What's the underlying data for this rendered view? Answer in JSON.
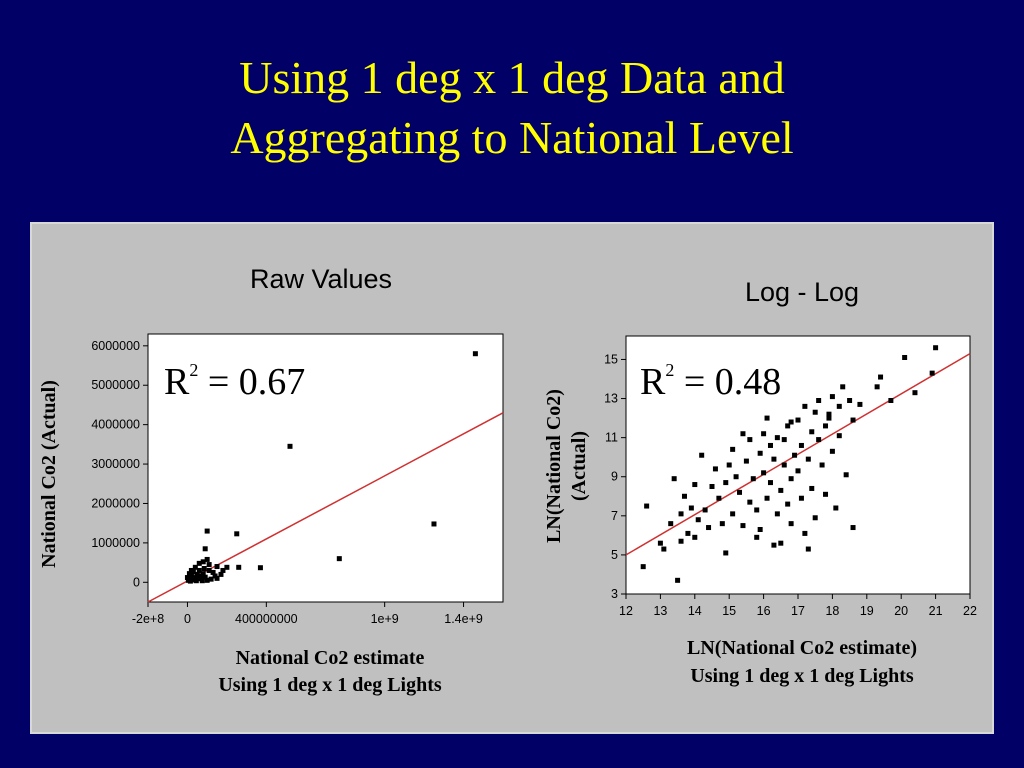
{
  "slide": {
    "title_line1": "Using 1 deg x 1 deg Data and",
    "title_line2": "Aggregating to National Level"
  },
  "colors": {
    "background": "#000066",
    "title": "#ffff00",
    "panel": "#c0c0c0",
    "fit_line": "#d03030",
    "points": "#000000"
  },
  "chart_data": [
    {
      "type": "scatter",
      "title": "Raw Values",
      "ylabel": "National Co2 (Actual)",
      "xlabel_line1": "National Co2 estimate",
      "xlabel_line2": "Using 1 deg x 1 deg Lights",
      "annotation": {
        "base": "R",
        "sup": "2",
        "value": " = 0.67"
      },
      "xlim": [
        -200000000,
        1600000000
      ],
      "ylim": [
        -500000,
        6300000
      ],
      "x_ticks": [
        {
          "value": -200000000,
          "label": "-2e+8"
        },
        {
          "value": 0,
          "label": "0"
        },
        {
          "value": 400000000,
          "label": "400000000"
        },
        {
          "value": 1000000000,
          "label": "1e+9"
        },
        {
          "value": 1400000000,
          "label": "1.4e+9"
        }
      ],
      "y_ticks": [
        {
          "value": 0,
          "label": "0"
        },
        {
          "value": 1000000,
          "label": "1000000"
        },
        {
          "value": 2000000,
          "label": "2000000"
        },
        {
          "value": 3000000,
          "label": "3000000"
        },
        {
          "value": 4000000,
          "label": "4000000"
        },
        {
          "value": 5000000,
          "label": "5000000"
        },
        {
          "value": 6000000,
          "label": "6000000"
        }
      ],
      "fit_line": [
        [
          -200000000,
          -500000
        ],
        [
          1600000000,
          4300000
        ]
      ],
      "points": [
        [
          1460000000,
          5800000
        ],
        [
          520000000,
          3450000
        ],
        [
          1250000000,
          1480000
        ],
        [
          770000000,
          600000
        ],
        [
          250000000,
          1230000
        ],
        [
          260000000,
          380000
        ],
        [
          370000000,
          370000
        ],
        [
          100000000,
          1300000
        ],
        [
          90000000,
          850000
        ],
        [
          150000000,
          400000
        ],
        [
          170000000,
          200000
        ],
        [
          150000000,
          100000
        ],
        [
          130000000,
          250000
        ],
        [
          110000000,
          450000
        ],
        [
          100000000,
          580000
        ],
        [
          80000000,
          520000
        ],
        [
          60000000,
          480000
        ],
        [
          40000000,
          380000
        ],
        [
          60000000,
          300000
        ],
        [
          80000000,
          220000
        ],
        [
          50000000,
          200000
        ],
        [
          30000000,
          260000
        ],
        [
          20000000,
          150000
        ],
        [
          10000000,
          100000
        ],
        [
          5000000,
          50000
        ],
        [
          15000000,
          30000
        ],
        [
          30000000,
          80000
        ],
        [
          40000000,
          120000
        ],
        [
          60000000,
          90000
        ],
        [
          70000000,
          160000
        ],
        [
          90000000,
          130000
        ],
        [
          100000000,
          50000
        ],
        [
          120000000,
          80000
        ],
        [
          140000000,
          160000
        ],
        [
          180000000,
          300000
        ],
        [
          200000000,
          380000
        ],
        [
          20000000,
          300000
        ],
        [
          0,
          120000
        ],
        [
          10000000,
          220000
        ],
        [
          45000000,
          40000
        ],
        [
          75000000,
          40000
        ],
        [
          85000000,
          350000
        ],
        [
          110000000,
          300000
        ],
        [
          25000000,
          60000
        ]
      ]
    },
    {
      "type": "scatter",
      "title": "Log - Log",
      "ylabel_line1": "LN(National Co2)",
      "ylabel_line2": "(Actual)",
      "xlabel_line1": "LN(National Co2 estimate)",
      "xlabel_line2": "Using 1 deg x 1 deg Lights",
      "annotation": {
        "base": "R",
        "sup": "2",
        "value": " = 0.48"
      },
      "xlim": [
        12,
        22
      ],
      "ylim": [
        3,
        16.2
      ],
      "x_ticks": [
        12,
        13,
        14,
        15,
        16,
        17,
        18,
        19,
        20,
        21,
        22
      ],
      "y_ticks": [
        3,
        5,
        7,
        9,
        11,
        13,
        15
      ],
      "fit_line": [
        [
          12,
          5.0
        ],
        [
          22,
          15.3
        ]
      ],
      "points": [
        [
          12.5,
          4.4
        ],
        [
          12.6,
          7.5
        ],
        [
          13.0,
          5.6
        ],
        [
          13.1,
          5.3
        ],
        [
          13.3,
          6.6
        ],
        [
          13.4,
          8.9
        ],
        [
          13.5,
          3.7
        ],
        [
          13.6,
          5.7
        ],
        [
          13.6,
          7.1
        ],
        [
          13.8,
          6.1
        ],
        [
          13.9,
          7.4
        ],
        [
          14.0,
          5.9
        ],
        [
          14.0,
          8.6
        ],
        [
          14.1,
          6.8
        ],
        [
          14.2,
          10.1
        ],
        [
          14.3,
          7.3
        ],
        [
          14.4,
          6.4
        ],
        [
          14.5,
          8.5
        ],
        [
          14.6,
          9.4
        ],
        [
          14.7,
          7.9
        ],
        [
          14.8,
          6.6
        ],
        [
          14.9,
          8.7
        ],
        [
          15.0,
          9.6
        ],
        [
          15.1,
          7.1
        ],
        [
          15.1,
          10.4
        ],
        [
          15.2,
          9.0
        ],
        [
          15.3,
          8.2
        ],
        [
          15.4,
          6.5
        ],
        [
          15.5,
          9.8
        ],
        [
          15.6,
          10.9
        ],
        [
          15.6,
          7.7
        ],
        [
          15.7,
          8.9
        ],
        [
          15.8,
          7.3
        ],
        [
          15.9,
          10.2
        ],
        [
          15.9,
          6.3
        ],
        [
          16.0,
          9.2
        ],
        [
          16.0,
          11.2
        ],
        [
          16.1,
          7.9
        ],
        [
          16.2,
          10.6
        ],
        [
          16.2,
          8.7
        ],
        [
          16.3,
          5.5
        ],
        [
          16.3,
          9.9
        ],
        [
          16.4,
          7.1
        ],
        [
          16.4,
          11.0
        ],
        [
          16.5,
          8.3
        ],
        [
          16.6,
          9.6
        ],
        [
          16.6,
          10.9
        ],
        [
          16.7,
          7.6
        ],
        [
          16.7,
          11.6
        ],
        [
          16.8,
          8.9
        ],
        [
          16.8,
          6.6
        ],
        [
          16.9,
          10.1
        ],
        [
          17.0,
          11.9
        ],
        [
          17.0,
          9.3
        ],
        [
          17.1,
          7.9
        ],
        [
          17.1,
          10.6
        ],
        [
          17.2,
          12.6
        ],
        [
          17.2,
          6.1
        ],
        [
          17.3,
          9.9
        ],
        [
          17.4,
          11.3
        ],
        [
          17.4,
          8.4
        ],
        [
          17.5,
          12.3
        ],
        [
          17.5,
          6.9
        ],
        [
          17.6,
          10.9
        ],
        [
          17.6,
          12.9
        ],
        [
          17.7,
          9.6
        ],
        [
          17.8,
          11.6
        ],
        [
          17.8,
          8.1
        ],
        [
          17.9,
          12.2
        ],
        [
          18.0,
          13.1
        ],
        [
          18.0,
          10.3
        ],
        [
          18.1,
          7.4
        ],
        [
          18.2,
          12.6
        ],
        [
          18.2,
          11.1
        ],
        [
          18.3,
          13.6
        ],
        [
          18.4,
          9.1
        ],
        [
          18.5,
          12.9
        ],
        [
          18.6,
          6.4
        ],
        [
          18.6,
          11.9
        ],
        [
          18.8,
          12.7
        ],
        [
          19.3,
          13.6
        ],
        [
          19.4,
          14.1
        ],
        [
          19.7,
          12.9
        ],
        [
          20.1,
          15.1
        ],
        [
          20.4,
          13.3
        ],
        [
          20.9,
          14.3
        ],
        [
          21.0,
          15.6
        ],
        [
          15.8,
          5.9
        ],
        [
          16.5,
          5.6
        ],
        [
          17.3,
          5.3
        ],
        [
          14.9,
          5.1
        ],
        [
          13.7,
          8.0
        ],
        [
          16.1,
          12.0
        ],
        [
          17.9,
          12.0
        ],
        [
          15.4,
          11.2
        ],
        [
          16.8,
          11.8
        ]
      ]
    }
  ]
}
